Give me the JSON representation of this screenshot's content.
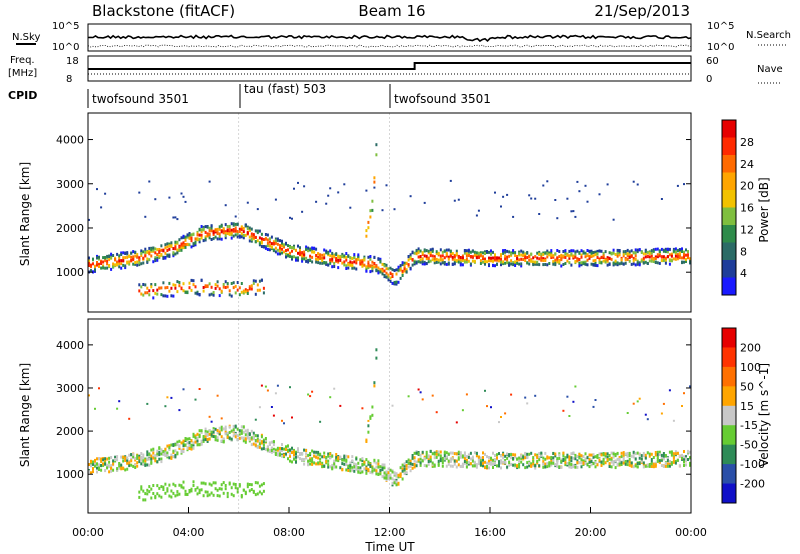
{
  "header": {
    "station": "Blackstone (fitACF)",
    "beam": "Beam 16",
    "date": "21/Sep/2013"
  },
  "top_panels": {
    "nsky_label": "N.Sky",
    "nsearch_label": "N.Search",
    "nsky_ticks": [
      "10^5",
      "10^0"
    ],
    "nsearch_ticks": [
      "10^5",
      "10^0"
    ],
    "freq_label_line1": "Freq.",
    "freq_label_line2": "[MHz]",
    "freq_ticks": [
      "18",
      "8"
    ],
    "nave_label": "Nave",
    "nave_ticks": [
      "60",
      "0"
    ],
    "cpid_label": "CPID",
    "cpid_segments": [
      {
        "label": "twofsound 3501",
        "start_h": 0,
        "end_h": 6
      },
      {
        "label": "tau (fast) 503",
        "start_h": 6,
        "end_h": 12
      },
      {
        "label": "twofsound 3501",
        "start_h": 12,
        "end_h": 24
      }
    ]
  },
  "chart_data": [
    {
      "type": "heatmap",
      "panel": "power",
      "ylabel": "Slant Range [km]",
      "ylim": [
        100,
        4600
      ],
      "xlim_hours": [
        0,
        24
      ],
      "y_ticks": [
        1000,
        2000,
        3000,
        4000
      ],
      "colorbar": {
        "label": "Power [dB]",
        "ticks": [
          "4",
          "8",
          "12",
          "16",
          "20",
          "24",
          "28"
        ],
        "colors": [
          "#1a1aff",
          "#1e3d9a",
          "#2b6b66",
          "#2e8b4a",
          "#7fbf3f",
          "#f2c200",
          "#ffa500",
          "#ff6a00",
          "#ff2a00",
          "#e60000"
        ]
      },
      "echo_bands": [
        {
          "desc": "main band",
          "range_km_vs_hour": [
            [
              0,
              1200
            ],
            [
              2,
              1350
            ],
            [
              3.5,
              1600
            ],
            [
              4.5,
              1900
            ],
            [
              6,
              2000
            ],
            [
              8,
              1500
            ],
            [
              10,
              1300
            ],
            [
              11.5,
              1200
            ],
            [
              12.2,
              900
            ],
            [
              13,
              1400
            ],
            [
              16,
              1350
            ],
            [
              20,
              1350
            ],
            [
              24,
              1400
            ]
          ]
        },
        {
          "desc": "low band",
          "range_km_vs_hour": [
            [
              2,
              600
            ],
            [
              4,
              700
            ],
            [
              6,
              650
            ],
            [
              7,
              700
            ]
          ]
        },
        {
          "desc": "spike",
          "range_km_vs_hour": [
            [
              11,
              1800
            ],
            [
              11.3,
              2600
            ],
            [
              11.5,
              4300
            ]
          ]
        }
      ]
    },
    {
      "type": "heatmap",
      "panel": "velocity",
      "ylabel": "Slant Range [km]",
      "xlabel": "Time UT",
      "ylim": [
        100,
        4600
      ],
      "xlim_hours": [
        0,
        24
      ],
      "y_ticks": [
        1000,
        2000,
        3000,
        4000
      ],
      "x_ticks": [
        "00:00",
        "04:00",
        "08:00",
        "12:00",
        "16:00",
        "20:00",
        "00:00"
      ],
      "colorbar": {
        "label": "Velocity [m s^-1]",
        "ticks": [
          "200",
          "100",
          "50",
          "15",
          "-15",
          "-50",
          "-100",
          "-200"
        ],
        "colors": [
          "#1010c8",
          "#2a4fa8",
          "#2e8b57",
          "#66cc33",
          "#c8c8c8",
          "#ffa500",
          "#ff7000",
          "#ff3300",
          "#e60000"
        ]
      }
    }
  ],
  "colors": {
    "ground_scatter": "#9e9e9e",
    "axis": "#000000"
  }
}
